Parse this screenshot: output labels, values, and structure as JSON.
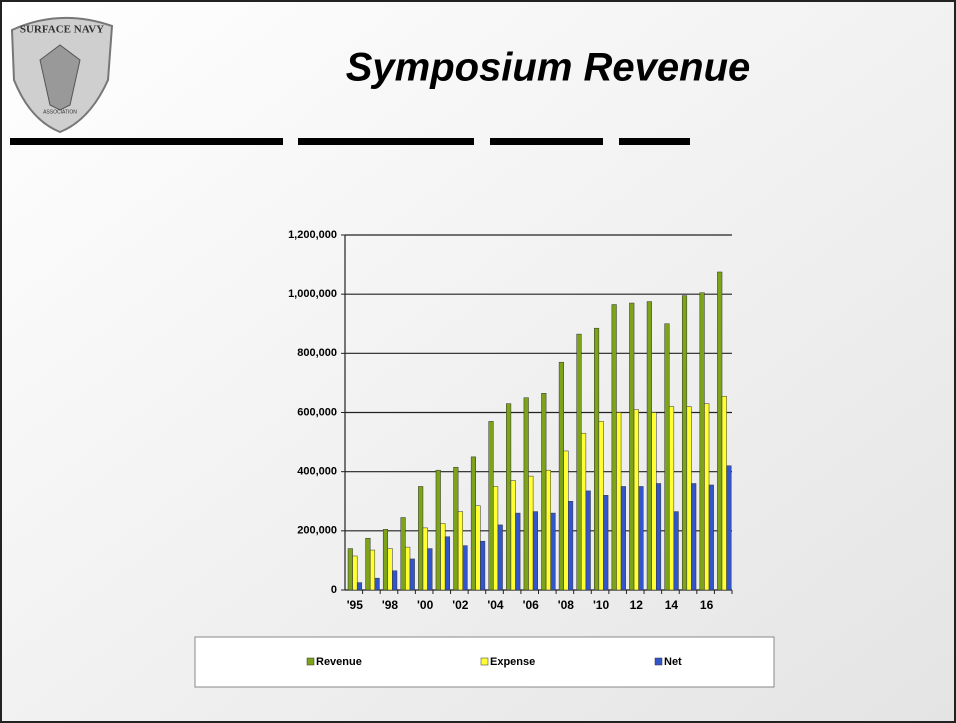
{
  "logo": {
    "top": "SURFACE NAVY",
    "bottom": "ASSOCIATION"
  },
  "chart_data": {
    "type": "bar",
    "title": "Symposium Revenue",
    "categories": [
      "'95",
      null,
      "'98",
      null,
      "'00",
      null,
      "'02",
      null,
      "'04",
      null,
      "'06",
      null,
      "'08",
      null,
      "'10",
      null,
      "12",
      null,
      "14",
      null,
      "16",
      null
    ],
    "series": [
      {
        "name": "Revenue",
        "color": "#7da318",
        "values": [
          140000,
          175000,
          205000,
          245000,
          350000,
          405000,
          415000,
          450000,
          570000,
          630000,
          650000,
          665000,
          770000,
          865000,
          885000,
          965000,
          970000,
          975000,
          900000,
          995000,
          1005000,
          1075000
        ]
      },
      {
        "name": "Expense",
        "color": "#ffff33",
        "values": [
          115000,
          135000,
          140000,
          145000,
          210000,
          225000,
          265000,
          285000,
          350000,
          370000,
          385000,
          405000,
          470000,
          530000,
          570000,
          600000,
          610000,
          600000,
          620000,
          620000,
          630000,
          655000
        ]
      },
      {
        "name": "Net",
        "color": "#3355cc",
        "values": [
          25000,
          40000,
          65000,
          105000,
          140000,
          180000,
          150000,
          165000,
          220000,
          260000,
          265000,
          260000,
          300000,
          335000,
          320000,
          350000,
          350000,
          360000,
          265000,
          360000,
          355000,
          420000
        ]
      }
    ],
    "ylim": [
      0,
      1200000
    ],
    "yticks": [
      0,
      {
        "value": 200000,
        "label": "200,000"
      },
      {
        "value": 400000,
        "label": "400,000"
      },
      {
        "value": 600000,
        "label": "600,000"
      },
      {
        "value": 800000,
        "label": "800,000"
      },
      {
        "value": 1000000,
        "label": "1,000,000"
      },
      {
        "value": 1200000,
        "label": "1,200,000"
      }
    ],
    "grid": true,
    "legend": "bottom"
  }
}
